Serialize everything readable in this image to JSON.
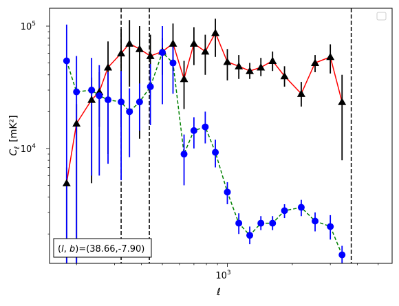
{
  "chart_data": {
    "type": "line",
    "xlabel": "ℓ",
    "ylabel_main": "C",
    "ylabel_sub": "ℓ",
    "ylabel_unit": "[mK²]",
    "xscale": "log",
    "yscale": "log",
    "xlim": [
      150,
      5800
    ],
    "ylim": [
      1150,
      140000
    ],
    "x_ticks": [
      {
        "value": 1000,
        "base": "10",
        "exp": "3"
      }
    ],
    "y_ticks": [
      {
        "value": 10000,
        "base": "10",
        "exp": "4"
      },
      {
        "value": 100000,
        "base": "10",
        "exp": "5"
      }
    ],
    "vlines": [
      322,
      435,
      3750
    ],
    "annotation": "(l, b)=(38.66,-7.90)",
    "annotation_parts": {
      "l": "l",
      "b": "b",
      "values": "=(38.66,-7.90)"
    },
    "legend": {
      "placement": "top-right",
      "entries": []
    },
    "colors": {
      "black_series": "#ff0000",
      "black_marker": "#000000",
      "blue_series": "#008000",
      "blue_marker": "#0000ff",
      "blue_err": "#0000ff",
      "black_err": "#000000"
    },
    "series": [
      {
        "style": "black-triangles-red-line",
        "points": [
          {
            "x": 180,
            "y": 5200,
            "lo": 1150,
            "hi": 7000
          },
          {
            "x": 200,
            "y": 16000,
            "lo": 1150,
            "hi": 23000
          },
          {
            "x": 235,
            "y": 25000,
            "lo": 5200,
            "hi": 38000
          },
          {
            "x": 255,
            "y": 29000,
            "lo": 15000,
            "hi": 42000
          },
          {
            "x": 280,
            "y": 46000,
            "lo": 9000,
            "hi": 75000
          },
          {
            "x": 322,
            "y": 60000,
            "lo": 15000,
            "hi": 95000
          },
          {
            "x": 352,
            "y": 72000,
            "lo": 32000,
            "hi": 112000
          },
          {
            "x": 392,
            "y": 65000,
            "lo": 12000,
            "hi": 100000
          },
          {
            "x": 440,
            "y": 57000,
            "lo": 26000,
            "hi": 85000
          },
          {
            "x": 500,
            "y": 62000,
            "lo": 40000,
            "hi": 80000
          },
          {
            "x": 560,
            "y": 72000,
            "lo": 43000,
            "hi": 105000
          },
          {
            "x": 630,
            "y": 37000,
            "lo": 21000,
            "hi": 52000
          },
          {
            "x": 700,
            "y": 72000,
            "lo": 48000,
            "hi": 98000
          },
          {
            "x": 790,
            "y": 62000,
            "lo": 40000,
            "hi": 85000
          },
          {
            "x": 880,
            "y": 88000,
            "lo": 56000,
            "hi": 115000
          },
          {
            "x": 1000,
            "y": 51000,
            "lo": 36000,
            "hi": 65000
          },
          {
            "x": 1130,
            "y": 47000,
            "lo": 37000,
            "hi": 58000
          },
          {
            "x": 1270,
            "y": 43000,
            "lo": 37000,
            "hi": 50000
          },
          {
            "x": 1430,
            "y": 46000,
            "lo": 39000,
            "hi": 55000
          },
          {
            "x": 1620,
            "y": 52000,
            "lo": 43000,
            "hi": 62000
          },
          {
            "x": 1840,
            "y": 39000,
            "lo": 32000,
            "hi": 47000
          },
          {
            "x": 2200,
            "y": 28000,
            "lo": 22000,
            "hi": 35000
          },
          {
            "x": 2550,
            "y": 50000,
            "lo": 42000,
            "hi": 58000
          },
          {
            "x": 3000,
            "y": 56000,
            "lo": 41000,
            "hi": 71000
          },
          {
            "x": 3400,
            "y": 24000,
            "lo": 8000,
            "hi": 40000
          }
        ]
      },
      {
        "style": "blue-circles-green-dashed",
        "points": [
          {
            "x": 180,
            "y": 52000,
            "lo": 1150,
            "hi": 103000
          },
          {
            "x": 200,
            "y": 29000,
            "lo": 1150,
            "hi": 57000
          },
          {
            "x": 235,
            "y": 30000,
            "lo": 6000,
            "hi": 55000
          },
          {
            "x": 255,
            "y": 27000,
            "lo": 6000,
            "hi": 48000
          },
          {
            "x": 280,
            "y": 25000,
            "lo": 7500,
            "hi": 42000
          },
          {
            "x": 322,
            "y": 24000,
            "lo": 5500,
            "hi": 43000
          },
          {
            "x": 352,
            "y": 20000,
            "lo": 8500,
            "hi": 31000
          },
          {
            "x": 392,
            "y": 24000,
            "lo": 14000,
            "hi": 34000
          },
          {
            "x": 440,
            "y": 32000,
            "lo": 15500,
            "hi": 49000
          },
          {
            "x": 500,
            "y": 61000,
            "lo": 23000,
            "hi": 100000
          },
          {
            "x": 560,
            "y": 50000,
            "lo": 28000,
            "hi": 73000
          },
          {
            "x": 630,
            "y": 9000,
            "lo": 5000,
            "hi": 13000
          },
          {
            "x": 700,
            "y": 14000,
            "lo": 10000,
            "hi": 18000
          },
          {
            "x": 790,
            "y": 15000,
            "lo": 11000,
            "hi": 20000
          },
          {
            "x": 880,
            "y": 9300,
            "lo": 7000,
            "hi": 11800
          },
          {
            "x": 1000,
            "y": 4400,
            "lo": 3500,
            "hi": 5300
          },
          {
            "x": 1130,
            "y": 2450,
            "lo": 2000,
            "hi": 2950
          },
          {
            "x": 1270,
            "y": 1950,
            "lo": 1650,
            "hi": 2300
          },
          {
            "x": 1430,
            "y": 2450,
            "lo": 2150,
            "hi": 2800
          },
          {
            "x": 1620,
            "y": 2450,
            "lo": 2150,
            "hi": 2800
          },
          {
            "x": 1840,
            "y": 3100,
            "lo": 2700,
            "hi": 3500
          },
          {
            "x": 2200,
            "y": 3300,
            "lo": 2800,
            "hi": 3800
          },
          {
            "x": 2550,
            "y": 2550,
            "lo": 2100,
            "hi": 3000
          },
          {
            "x": 3000,
            "y": 2300,
            "lo": 1800,
            "hi": 2850
          },
          {
            "x": 3400,
            "y": 1350,
            "lo": 1150,
            "hi": 1600
          }
        ]
      }
    ]
  }
}
